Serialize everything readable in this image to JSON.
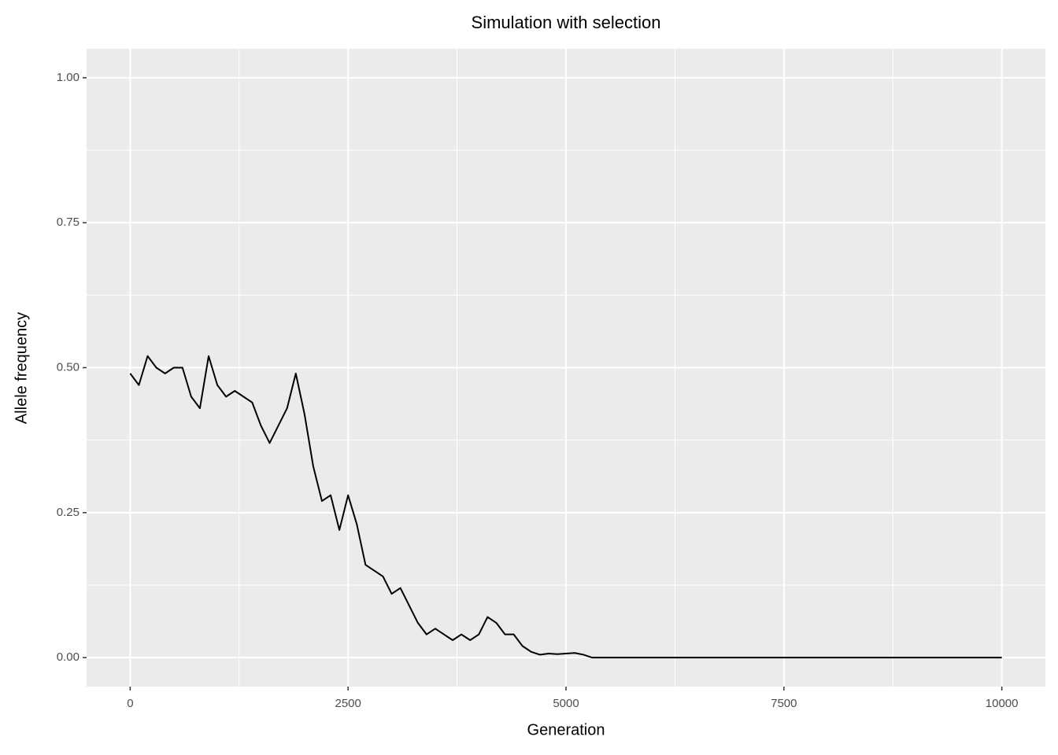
{
  "chart_data": {
    "type": "line",
    "title": "Simulation with selection",
    "x_label": "Generation",
    "y_label": "Allele frequency",
    "x": [
      0,
      100,
      200,
      300,
      400,
      500,
      600,
      700,
      800,
      900,
      1000,
      1100,
      1200,
      1300,
      1400,
      1500,
      1600,
      1700,
      1800,
      1900,
      2000,
      2100,
      2200,
      2300,
      2400,
      2500,
      2600,
      2700,
      2800,
      2900,
      3000,
      3100,
      3200,
      3300,
      3400,
      3500,
      3600,
      3700,
      3800,
      3900,
      4000,
      4100,
      4200,
      4300,
      4400,
      4500,
      4600,
      4700,
      4800,
      4900,
      5000,
      5100,
      5200,
      5300,
      10000
    ],
    "series": [
      {
        "name": "Allele frequency",
        "color": "#000000",
        "values": [
          0.49,
          0.47,
          0.52,
          0.5,
          0.49,
          0.5,
          0.5,
          0.45,
          0.43,
          0.52,
          0.47,
          0.45,
          0.46,
          0.45,
          0.44,
          0.4,
          0.37,
          0.4,
          0.43,
          0.49,
          0.42,
          0.33,
          0.27,
          0.28,
          0.22,
          0.28,
          0.23,
          0.16,
          0.15,
          0.14,
          0.11,
          0.12,
          0.09,
          0.06,
          0.04,
          0.05,
          0.04,
          0.03,
          0.04,
          0.03,
          0.04,
          0.07,
          0.06,
          0.04,
          0.04,
          0.02,
          0.01,
          0.005,
          0.007,
          0.006,
          0.007,
          0.008,
          0.005,
          0,
          0
        ]
      }
    ],
    "xlim": [
      -500,
      10500
    ],
    "xticks": [
      0,
      2500,
      5000,
      7500,
      10000
    ],
    "ylim": [
      -0.05,
      1.05
    ],
    "yticks": [
      {
        "value": 0,
        "label": "0.00"
      },
      {
        "value": 0.25,
        "label": "0.25"
      },
      {
        "value": 0.5,
        "label": "0.50"
      },
      {
        "value": 0.75,
        "label": "0.75"
      },
      {
        "value": 1,
        "label": "1.00"
      }
    ],
    "grid": true
  }
}
